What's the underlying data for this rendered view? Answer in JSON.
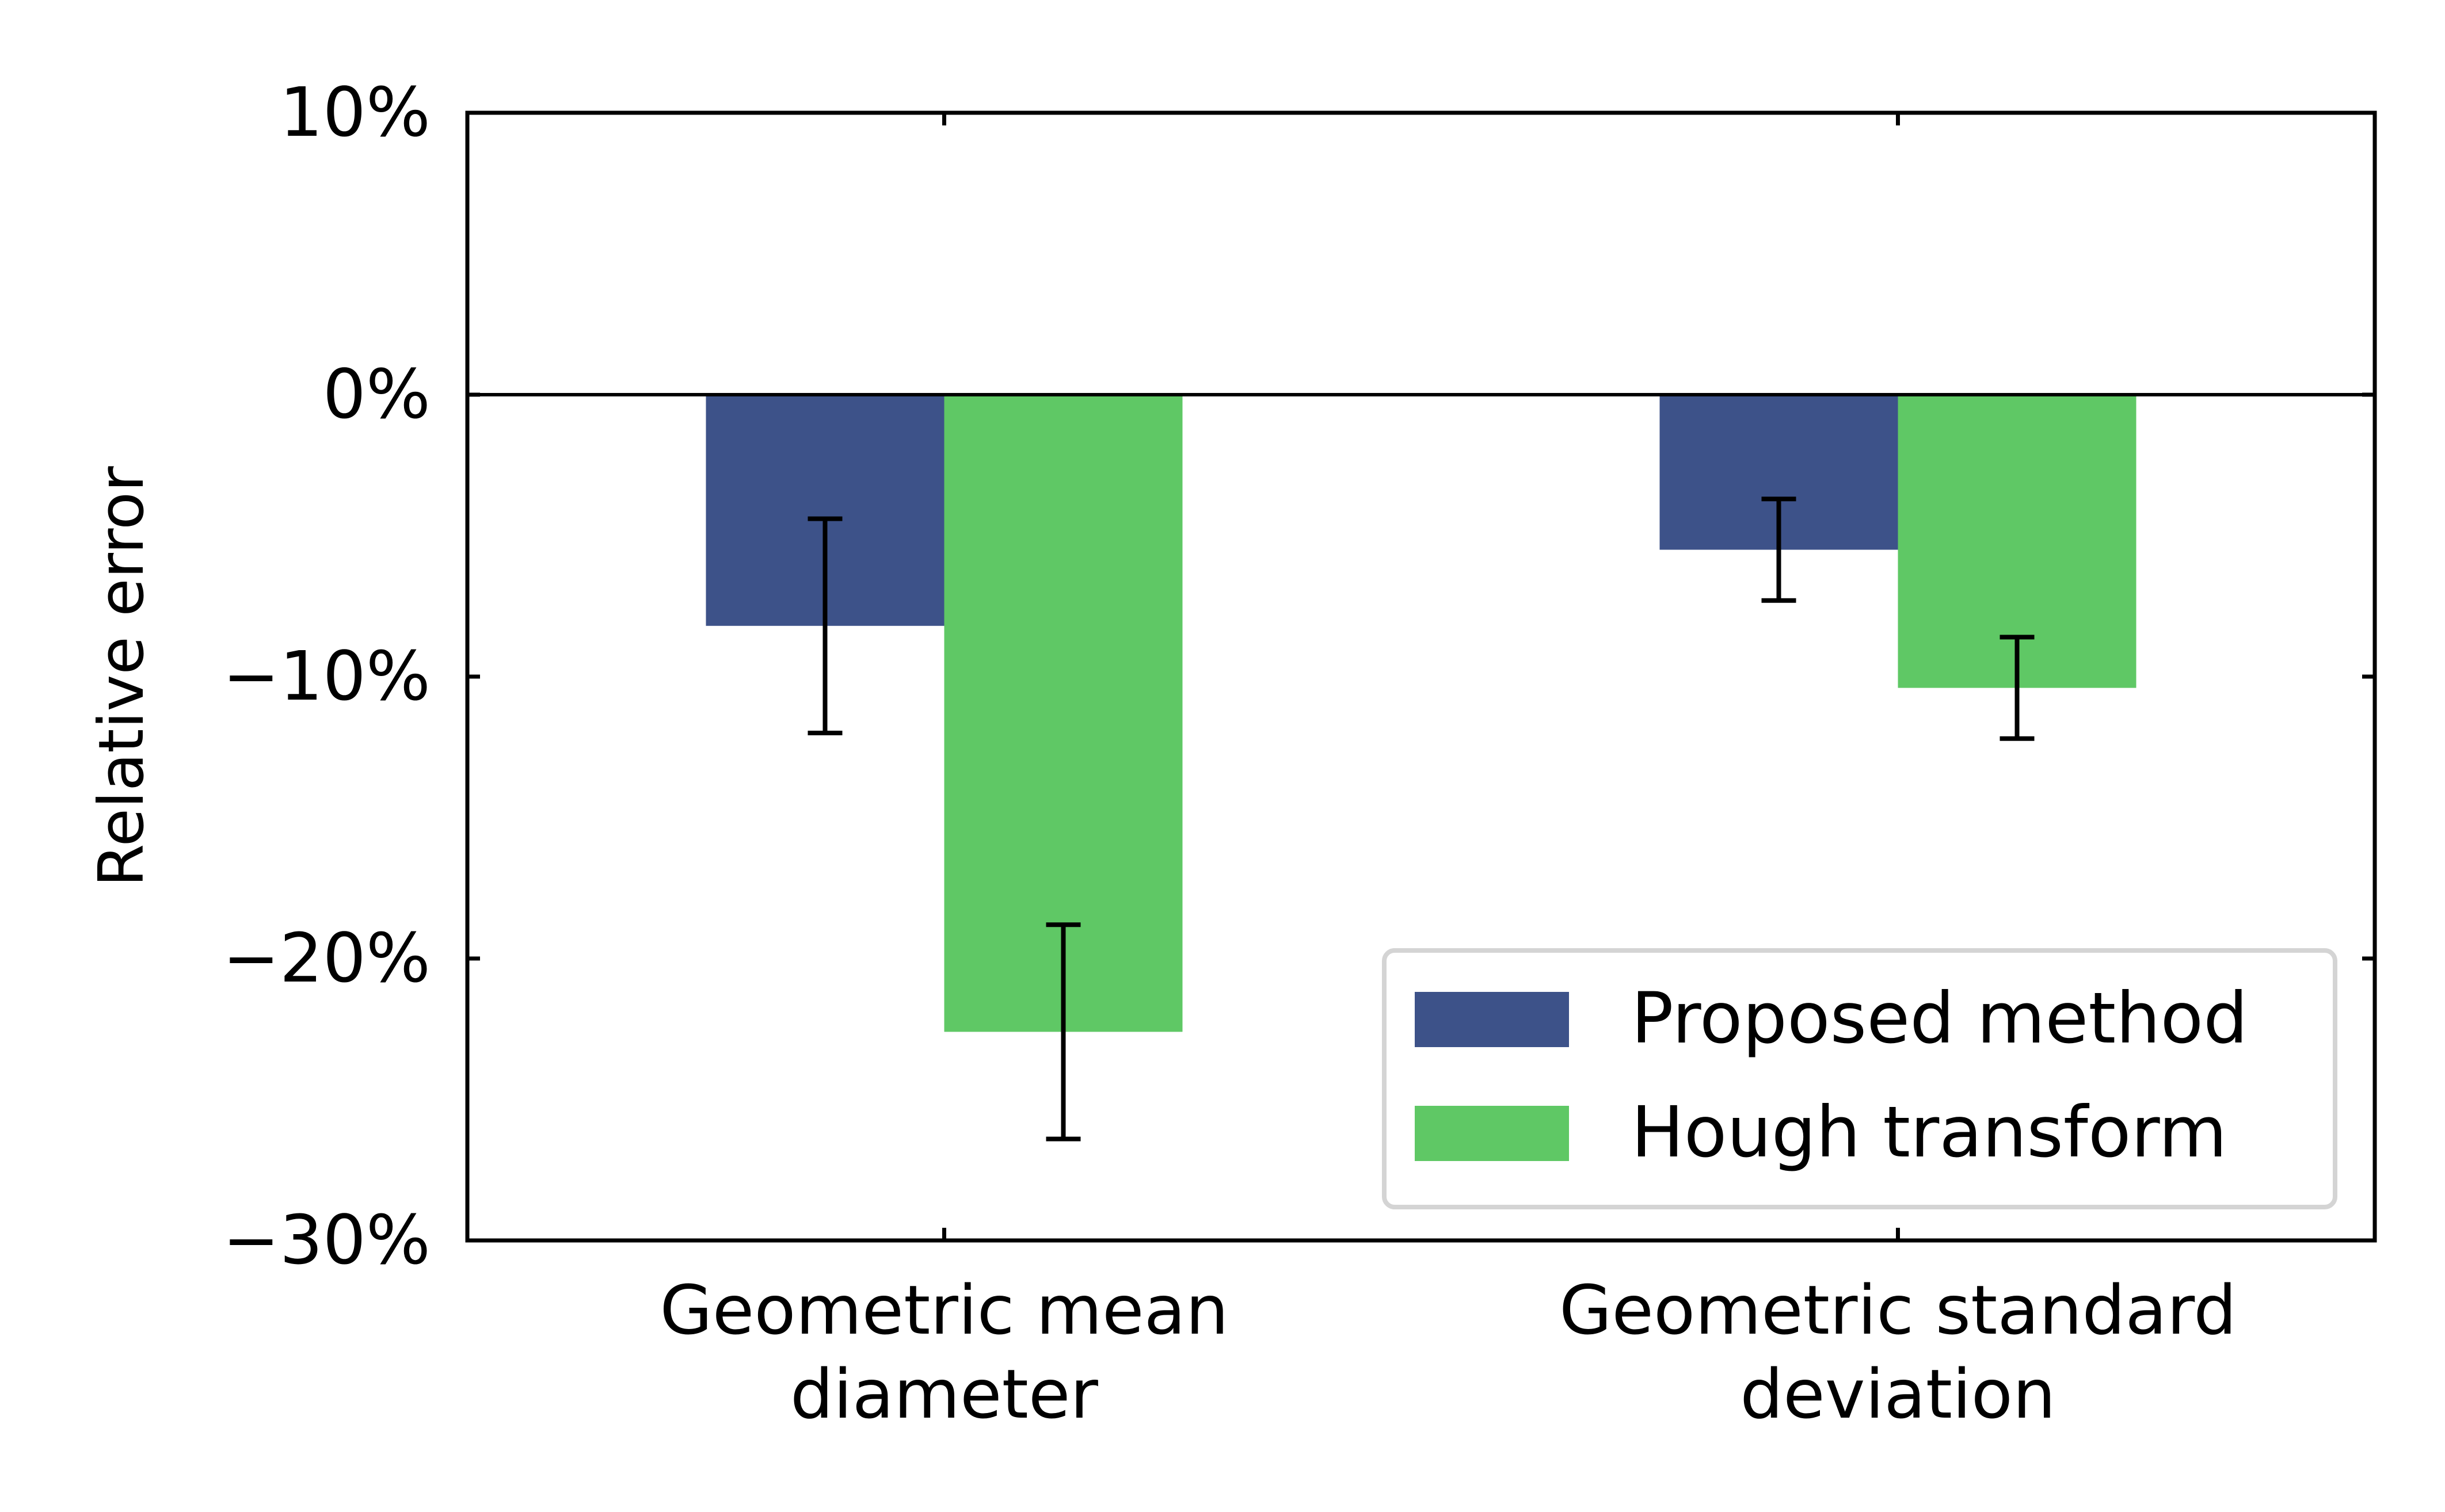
{
  "chart_data": {
    "type": "bar",
    "title": "",
    "ylabel": "Relative error",
    "xlabel": "",
    "ylim": [
      -30,
      10
    ],
    "yticks": [
      10,
      0,
      -10,
      -20,
      -30
    ],
    "ytick_labels": [
      "10%",
      "0%",
      "−10%",
      "−20%",
      "−30%"
    ],
    "categories": [
      [
        "Geometric mean",
        "diameter"
      ],
      [
        "Geometric standard",
        "deviation"
      ]
    ],
    "series": [
      {
        "name": "Proposed method",
        "color": "#3d5289",
        "values": [
          -8.2,
          -5.5
        ],
        "error": [
          3.8,
          1.8
        ]
      },
      {
        "name": "Hough transform",
        "color": "#5fc865",
        "values": [
          -22.6,
          -10.4
        ],
        "error": [
          3.8,
          1.8
        ]
      }
    ],
    "zero_line": true,
    "grid": false,
    "legend_position": "lower-right"
  }
}
